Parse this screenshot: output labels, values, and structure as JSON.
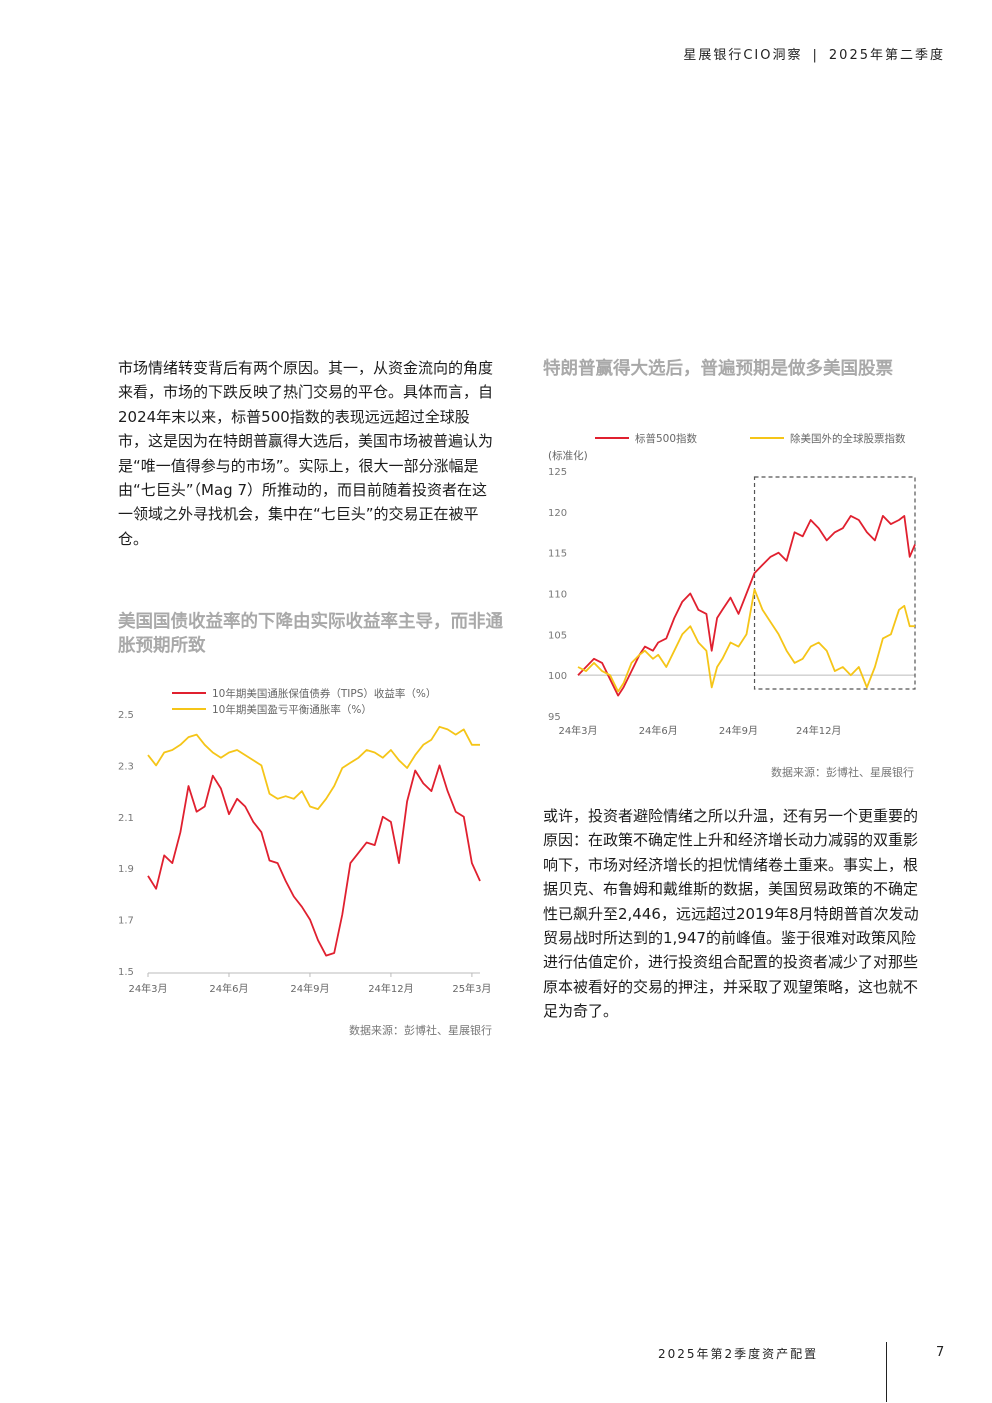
{
  "header": {
    "title": "星展银行CIO洞察",
    "period": "2025年第二季度"
  },
  "paragraph1": "市场情绪转变背后有两个原因。其一，从资金流向的角度来看，市场的下跌反映了热门交易的平仓。具体而言，自2024年末以来，标普500指数的表现远远超过全球股市，这是因为在特朗普赢得大选后，美国市场被普遍认为是“唯一值得参与的市场”。实际上，很大一部分涨幅是由“七巨头”（Mag 7）所推动的，而目前随着投资者在这一领域之外寻找机会，集中在“七巨头”的交易正在被平仓。",
  "paragraph2": "或许，投资者避险情绪之所以升温，还有另一个更重要的原因：在政策不确定性上升和经济增长动力减弱的双重影响下，市场对经济增长的担忧情绪卷土重来。事实上，根据贝克、布鲁姆和戴维斯的数据，美国贸易政策的不确定性已飙升至2,446，远远超过2019年8月特朗普首次发动贸易战时所达到的1,947的前峰值。鉴于很难对政策风险进行估值定价，进行投资组合配置的投资者减少了对那些原本被看好的交易的押注，并采取了观望策略，这也就不足为奇了。",
  "chart_data": [
    {
      "type": "line",
      "title": "特朗普赢得大选后，普遍预期是做多美国股票",
      "ylabel": "(标准化)",
      "ylim": [
        95,
        125
      ],
      "yticks": [
        95,
        100,
        105,
        110,
        115,
        120,
        125
      ],
      "xlim": [
        0,
        12.6
      ],
      "xtick_labels": [
        {
          "label": "24年3月",
          "x": 0
        },
        {
          "label": "24年6月",
          "x": 3
        },
        {
          "label": "24年9月",
          "x": 6
        },
        {
          "label": "24年12月",
          "x": 9
        }
      ],
      "highlight_x": [
        6.6,
        12.6
      ],
      "series": [
        {
          "name": "标普500指数",
          "color": "#e0202f",
          "x": [
            0,
            0.3,
            0.6,
            0.9,
            1.2,
            1.5,
            1.7,
            2.0,
            2.3,
            2.5,
            2.8,
            3.0,
            3.3,
            3.6,
            3.9,
            4.2,
            4.5,
            4.8,
            5.0,
            5.2,
            5.4,
            5.7,
            6.0,
            6.3,
            6.6,
            6.9,
            7.2,
            7.5,
            7.8,
            8.1,
            8.4,
            8.7,
            9.0,
            9.3,
            9.6,
            9.9,
            10.2,
            10.5,
            10.8,
            11.1,
            11.4,
            11.7,
            12.0,
            12.2,
            12.4,
            12.6
          ],
          "y": [
            100,
            101,
            102,
            101.5,
            99.5,
            97.5,
            98.5,
            100.5,
            102.5,
            103.5,
            103,
            104,
            104.5,
            107,
            109,
            110,
            108,
            107.5,
            103,
            107,
            108,
            109.5,
            107.5,
            110,
            112.5,
            113.5,
            114.5,
            115,
            114,
            117.5,
            117,
            119,
            118,
            116.5,
            117.5,
            118,
            119.5,
            119,
            117.5,
            116.5,
            119.5,
            118.5,
            119,
            119.5,
            114.5,
            116
          ]
        },
        {
          "name": "除美国外的全球股票指数",
          "color": "#f5c518",
          "x": [
            0,
            0.3,
            0.6,
            0.9,
            1.2,
            1.5,
            1.7,
            2.0,
            2.3,
            2.5,
            2.8,
            3.0,
            3.3,
            3.6,
            3.9,
            4.2,
            4.5,
            4.8,
            5.0,
            5.2,
            5.4,
            5.7,
            6.0,
            6.3,
            6.6,
            6.9,
            7.2,
            7.5,
            7.8,
            8.1,
            8.4,
            8.7,
            9.0,
            9.3,
            9.6,
            9.9,
            10.2,
            10.5,
            10.8,
            11.1,
            11.4,
            11.7,
            12.0,
            12.2,
            12.4,
            12.6
          ],
          "y": [
            101,
            100.5,
            101.5,
            100.5,
            100,
            98,
            99,
            101.5,
            102.5,
            103,
            102,
            102.5,
            101,
            103,
            105,
            106,
            104,
            103,
            98.5,
            101,
            102,
            104,
            103.5,
            105,
            110.5,
            108,
            106.5,
            105,
            103,
            101.5,
            102,
            103.5,
            104,
            103,
            100.5,
            101,
            100,
            101,
            98.5,
            101,
            104.5,
            105,
            108,
            108.5,
            106,
            106
          ]
        }
      ]
    },
    {
      "type": "line",
      "title": "美国国债收益率的下降由实际收益率主导，而非通胀预期所致",
      "ylim": [
        1.5,
        2.5
      ],
      "yticks": [
        1.5,
        1.7,
        1.9,
        2.1,
        2.3,
        2.5
      ],
      "xlim": [
        0,
        12.3
      ],
      "xtick_labels": [
        {
          "label": "24年3月",
          "x": 0
        },
        {
          "label": "24年6月",
          "x": 3
        },
        {
          "label": "24年9月",
          "x": 6
        },
        {
          "label": "24年12月",
          "x": 9
        },
        {
          "label": "25年3月",
          "x": 12
        }
      ],
      "series": [
        {
          "name": "10年期美国通胀保值债券（TIPS）收益率（%）",
          "color": "#e0202f",
          "x": [
            0,
            0.3,
            0.6,
            0.9,
            1.2,
            1.5,
            1.8,
            2.1,
            2.4,
            2.7,
            3.0,
            3.3,
            3.6,
            3.9,
            4.2,
            4.5,
            4.8,
            5.1,
            5.4,
            5.7,
            6.0,
            6.3,
            6.6,
            6.9,
            7.2,
            7.5,
            7.8,
            8.1,
            8.4,
            8.7,
            9.0,
            9.3,
            9.6,
            9.9,
            10.2,
            10.5,
            10.8,
            11.1,
            11.4,
            11.7,
            12.0,
            12.3
          ],
          "y": [
            1.87,
            1.82,
            1.95,
            1.92,
            2.04,
            2.22,
            2.12,
            2.14,
            2.26,
            2.21,
            2.11,
            2.17,
            2.14,
            2.08,
            2.04,
            1.93,
            1.92,
            1.85,
            1.79,
            1.75,
            1.7,
            1.62,
            1.56,
            1.57,
            1.72,
            1.92,
            1.96,
            2.0,
            1.99,
            2.1,
            2.08,
            1.92,
            2.16,
            2.28,
            2.23,
            2.2,
            2.3,
            2.2,
            2.12,
            2.1,
            1.92,
            1.85
          ]
        },
        {
          "name": "10年期美国盈亏平衡通胀率（%）",
          "color": "#f5c518",
          "x": [
            0,
            0.3,
            0.6,
            0.9,
            1.2,
            1.5,
            1.8,
            2.1,
            2.4,
            2.7,
            3.0,
            3.3,
            3.6,
            3.9,
            4.2,
            4.5,
            4.8,
            5.1,
            5.4,
            5.7,
            6.0,
            6.3,
            6.6,
            6.9,
            7.2,
            7.5,
            7.8,
            8.1,
            8.4,
            8.7,
            9.0,
            9.3,
            9.6,
            9.9,
            10.2,
            10.5,
            10.8,
            11.1,
            11.4,
            11.7,
            12.0,
            12.3
          ],
          "y": [
            2.34,
            2.3,
            2.35,
            2.36,
            2.38,
            2.41,
            2.42,
            2.38,
            2.35,
            2.33,
            2.35,
            2.36,
            2.34,
            2.32,
            2.3,
            2.19,
            2.17,
            2.18,
            2.17,
            2.2,
            2.14,
            2.13,
            2.17,
            2.22,
            2.29,
            2.31,
            2.33,
            2.36,
            2.35,
            2.33,
            2.36,
            2.32,
            2.29,
            2.34,
            2.38,
            2.4,
            2.45,
            2.44,
            2.42,
            2.44,
            2.38,
            2.38
          ]
        }
      ]
    }
  ],
  "source_sp": "数据来源：彭博社、星展银行",
  "source_tips": "数据来源：彭博社、星展银行",
  "footer": {
    "label": "2025年第2季度资产配置",
    "page": "7"
  }
}
